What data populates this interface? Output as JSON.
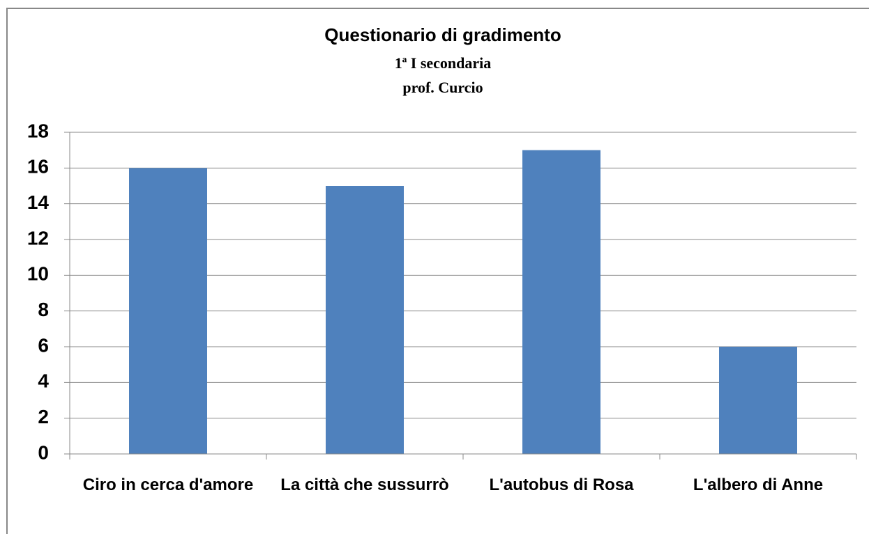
{
  "chart_data": {
    "type": "bar",
    "title": "Questionario di gradimento",
    "subtitle": [
      "1ª I secondaria",
      "prof. Curcio"
    ],
    "categories": [
      "Ciro in cerca d'amore",
      "La città che sussurrò",
      "L'autobus di Rosa",
      "L'albero di Anne"
    ],
    "values": [
      16,
      15,
      17,
      6
    ],
    "color": "#4f81bd",
    "ylim": [
      0,
      18
    ],
    "yticks": [
      0,
      2,
      4,
      6,
      8,
      10,
      12,
      14,
      16,
      18
    ],
    "grid": true
  }
}
